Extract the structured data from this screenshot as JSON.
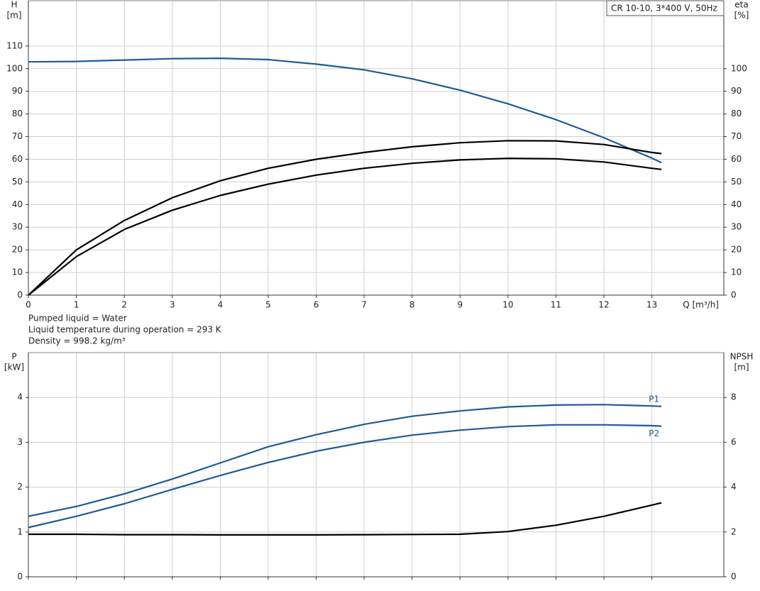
{
  "chart_data": [
    {
      "type": "line",
      "title": "CR 10-10, 3*400 V, 50Hz",
      "ylabel": "H",
      "yunit": "[m]",
      "y2label": "eta",
      "y2unit": "[%]",
      "xlabel": "Q [m³/h]",
      "annotations": [
        "Pumped liquid = Water",
        "Liquid temperature during operation = 293 K",
        "Density = 998.2 kg/m³"
      ],
      "x": [
        0,
        1,
        2,
        3,
        4,
        5,
        6,
        7,
        8,
        9,
        10,
        11,
        12,
        13,
        13.2
      ],
      "xlim": [
        0,
        14.5
      ],
      "xticks": [
        0,
        1,
        2,
        3,
        4,
        5,
        6,
        7,
        8,
        9,
        10,
        11,
        12,
        13
      ],
      "ylim": [
        0,
        130
      ],
      "yticks": [
        0,
        10,
        20,
        30,
        40,
        50,
        60,
        70,
        80,
        90,
        100,
        110
      ],
      "y2lim": [
        0,
        130
      ],
      "y2ticks": [
        0,
        10,
        20,
        30,
        40,
        50,
        60,
        70,
        80,
        90,
        100
      ],
      "grid": true,
      "series": [
        {
          "color": "#1f5a96",
          "values": [
            103,
            103.2,
            103.8,
            104.4,
            104.6,
            104,
            102,
            99.5,
            95.5,
            90.5,
            84.5,
            77.5,
            69.5,
            60.5,
            58.5
          ]
        },
        {
          "color": "#000000",
          "axis": "y2",
          "values": [
            0,
            20,
            33,
            43,
            50.5,
            56,
            60,
            63,
            65.5,
            67.3,
            68.2,
            68.1,
            66.5,
            63,
            62.5
          ]
        },
        {
          "color": "#000000",
          "axis": "y2",
          "values": [
            0,
            17,
            29,
            37.5,
            44,
            49,
            53,
            56,
            58.2,
            59.7,
            60.4,
            60.2,
            58.8,
            56,
            55.5
          ]
        }
      ]
    },
    {
      "type": "line",
      "ylabel": "P",
      "yunit": "[kW]",
      "y2label": "NPSH",
      "y2unit": "[m]",
      "x": [
        0,
        1,
        2,
        3,
        4,
        5,
        6,
        7,
        8,
        9,
        10,
        11,
        12,
        13,
        13.2
      ],
      "xlim": [
        0,
        14.5
      ],
      "xticks": [
        0,
        1,
        2,
        3,
        4,
        5,
        6,
        7,
        8,
        9,
        10,
        11,
        12,
        13
      ],
      "ylim": [
        0,
        5
      ],
      "yticks": [
        0,
        1,
        2,
        3,
        4
      ],
      "y2lim": [
        0,
        10
      ],
      "y2ticks": [
        0,
        2,
        4,
        6,
        8
      ],
      "grid": true,
      "series": [
        {
          "name": "P1",
          "color": "#1f5a96",
          "values": [
            1.35,
            1.57,
            1.85,
            2.18,
            2.54,
            2.9,
            3.17,
            3.4,
            3.58,
            3.7,
            3.79,
            3.83,
            3.84,
            3.81,
            3.8
          ]
        },
        {
          "name": "P2",
          "color": "#1f5a96",
          "values": [
            1.1,
            1.35,
            1.63,
            1.95,
            2.26,
            2.55,
            2.8,
            3.0,
            3.16,
            3.27,
            3.35,
            3.39,
            3.39,
            3.37,
            3.36
          ]
        },
        {
          "color": "#000000",
          "axis": "y2",
          "values": [
            1.9,
            1.9,
            1.88,
            1.88,
            1.87,
            1.87,
            1.87,
            1.88,
            1.89,
            1.9,
            2.02,
            2.3,
            2.7,
            3.2,
            3.3
          ]
        }
      ]
    }
  ]
}
